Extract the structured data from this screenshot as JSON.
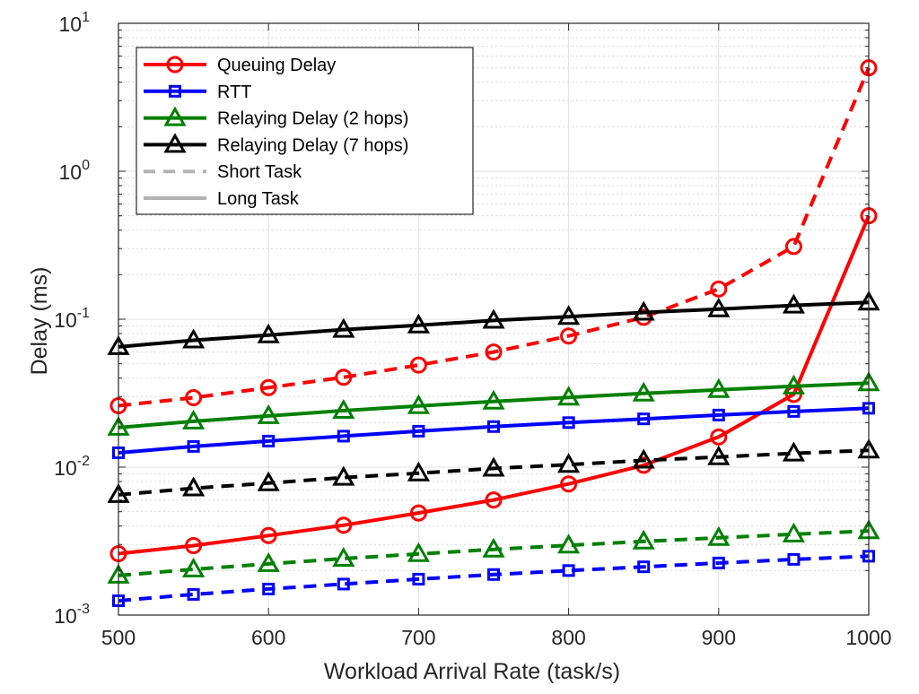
{
  "chart_data": {
    "type": "line",
    "title": "",
    "xlabel": "Workload Arrival Rate (task/s)",
    "ylabel": "Delay (ms)",
    "xlim": [
      500,
      1000
    ],
    "ylim": [
      0.001,
      10
    ],
    "yscale": "log",
    "grid": true,
    "minor_grid": true,
    "legend_position": "top-left",
    "x_ticks": [
      500,
      600,
      700,
      800,
      900,
      1000
    ],
    "x_tick_labels": [
      "500",
      "600",
      "700",
      "800",
      "900",
      "1000"
    ],
    "y_tick_labels": [
      {
        "base": "10",
        "exp": "-3"
      },
      {
        "base": "10",
        "exp": "-2"
      },
      {
        "base": "10",
        "exp": "-1"
      },
      {
        "base": "10",
        "exp": "0"
      },
      {
        "base": "10",
        "exp": "1"
      }
    ],
    "x": [
      500,
      550,
      600,
      650,
      700,
      750,
      800,
      850,
      900,
      950,
      1000
    ],
    "series": [
      {
        "name": "Queuing Delay",
        "task": "short",
        "color": "#ff0000",
        "marker": "circle",
        "dashed": true,
        "values": [
          0.026,
          0.0295,
          0.0345,
          0.0405,
          0.049,
          0.06,
          0.077,
          0.103,
          0.16,
          0.31,
          5.0
        ]
      },
      {
        "name": "Queuing Delay",
        "task": "long",
        "color": "#ff0000",
        "marker": "circle",
        "dashed": false,
        "values": [
          0.0026,
          0.00295,
          0.00345,
          0.00405,
          0.0049,
          0.006,
          0.0077,
          0.0103,
          0.016,
          0.031,
          0.5
        ]
      },
      {
        "name": "RTT",
        "task": "short",
        "color": "#0000ff",
        "marker": "square",
        "dashed": true,
        "values": [
          0.00125,
          0.00138,
          0.0015,
          0.00162,
          0.00175,
          0.00188,
          0.002,
          0.00212,
          0.00225,
          0.00238,
          0.0025
        ]
      },
      {
        "name": "RTT",
        "task": "long",
        "color": "#0000ff",
        "marker": "square",
        "dashed": false,
        "values": [
          0.0125,
          0.0138,
          0.015,
          0.0162,
          0.0175,
          0.0188,
          0.02,
          0.0212,
          0.0225,
          0.0238,
          0.025
        ]
      },
      {
        "name": "Relaying Delay (2 hops)",
        "task": "short",
        "color": "#008000",
        "marker": "triangle",
        "dashed": true,
        "values": [
          0.00185,
          0.00204,
          0.00222,
          0.00241,
          0.00259,
          0.00278,
          0.00296,
          0.00315,
          0.00333,
          0.00352,
          0.0037
        ]
      },
      {
        "name": "Relaying Delay (2 hops)",
        "task": "long",
        "color": "#008000",
        "marker": "triangle",
        "dashed": false,
        "values": [
          0.0185,
          0.0204,
          0.0222,
          0.0241,
          0.0259,
          0.0278,
          0.0296,
          0.0315,
          0.0333,
          0.0352,
          0.037
        ]
      },
      {
        "name": "Relaying Delay (7 hops)",
        "task": "short",
        "color": "#000000",
        "marker": "triangle",
        "dashed": true,
        "values": [
          0.0065,
          0.0072,
          0.0078,
          0.0085,
          0.0091,
          0.0098,
          0.0104,
          0.0111,
          0.0117,
          0.0124,
          0.013
        ]
      },
      {
        "name": "Relaying Delay (7 hops)",
        "task": "long",
        "color": "#000000",
        "marker": "triangle",
        "dashed": false,
        "values": [
          0.065,
          0.072,
          0.078,
          0.085,
          0.091,
          0.098,
          0.104,
          0.111,
          0.117,
          0.124,
          0.13
        ]
      }
    ],
    "legend": [
      {
        "label": "Queuing Delay",
        "color": "#ff0000",
        "marker": "circle",
        "line": "solid"
      },
      {
        "label": "RTT",
        "color": "#0000ff",
        "marker": "square",
        "line": "solid"
      },
      {
        "label": "Relaying Delay (2 hops)",
        "color": "#008000",
        "marker": "triangle",
        "line": "solid"
      },
      {
        "label": "Relaying Delay (7 hops)",
        "color": "#000000",
        "marker": "triangle",
        "line": "solid"
      },
      {
        "label": "Short Task",
        "color": "#b3b3b3",
        "marker": "none",
        "line": "dashed"
      },
      {
        "label": "Long Task",
        "color": "#b3b3b3",
        "marker": "none",
        "line": "solid"
      }
    ]
  }
}
